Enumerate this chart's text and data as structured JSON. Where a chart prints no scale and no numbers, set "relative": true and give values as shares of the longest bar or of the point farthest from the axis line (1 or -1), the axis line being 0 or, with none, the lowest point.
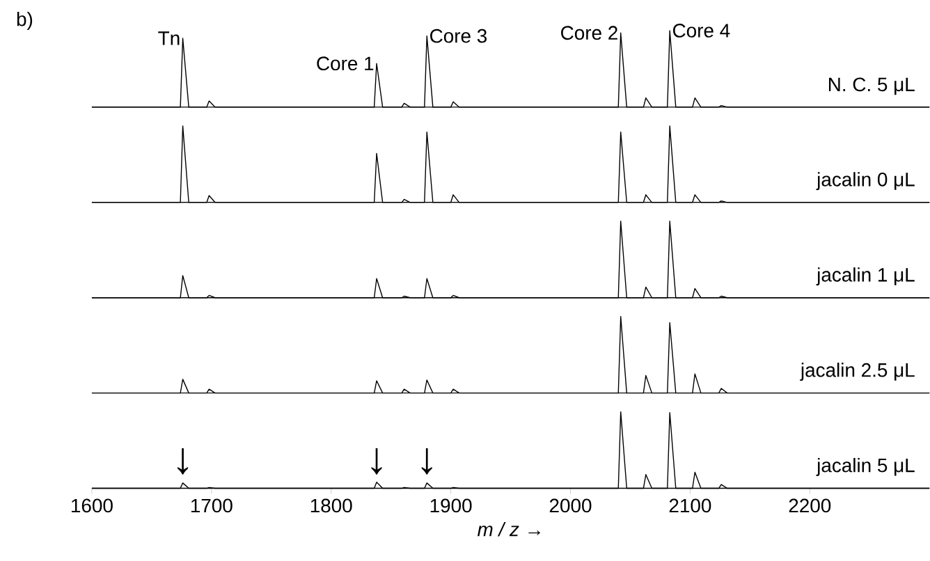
{
  "chart_data": [
    {
      "type": "line",
      "relative": true,
      "xlim": [
        1600,
        2300
      ],
      "tick_labels": false,
      "x": [
        1600,
        1674,
        1676,
        1681,
        1696,
        1698,
        1703,
        1836,
        1838,
        1843,
        1859,
        1861,
        1866,
        1878,
        1880,
        1885,
        1900,
        1902,
        1907,
        2040,
        2042,
        2047,
        2061,
        2063,
        2068,
        2081,
        2083,
        2088,
        2102,
        2104,
        2109,
        2124,
        2126,
        2131,
        2300
      ],
      "series": [
        {
          "name": "N. C. 5 μL",
          "color": "#000000",
          "values": [
            0,
            0,
            0.9,
            0,
            0,
            0.08,
            0,
            0,
            0.57,
            0,
            0,
            0.05,
            0,
            0,
            0.93,
            0,
            0,
            0.07,
            0,
            0,
            0.97,
            0,
            0,
            0.12,
            0,
            0,
            1,
            0,
            0,
            0.12,
            0,
            0,
            0.02,
            0,
            0
          ]
        }
      ],
      "annotations": [
        "b)",
        {
          "text": "Tn",
          "x": 1676,
          "y": 0.9
        },
        {
          "text": "Core 1",
          "x": 1838,
          "y": 0.57
        },
        {
          "text": "Core 3",
          "x": 1880,
          "y": 0.93
        },
        {
          "text": "Core 2",
          "x": 2042,
          "y": 0.97
        },
        {
          "text": "Core 4",
          "x": 2083,
          "y": 1
        }
      ]
    },
    {
      "type": "line",
      "relative": true,
      "xlim": [
        1600,
        2300
      ],
      "tick_labels": false,
      "x": [
        1600,
        1674,
        1676,
        1681,
        1696,
        1698,
        1703,
        1836,
        1838,
        1843,
        1859,
        1861,
        1866,
        1878,
        1880,
        1885,
        1900,
        1902,
        1907,
        2040,
        2042,
        2047,
        2061,
        2063,
        2068,
        2081,
        2083,
        2088,
        2102,
        2104,
        2109,
        2124,
        2126,
        2131,
        2300
      ],
      "series": [
        {
          "name": "jacalin 0 μL",
          "color": "#000000",
          "values": [
            0,
            0,
            1,
            0,
            0,
            0.09,
            0,
            0,
            0.64,
            0,
            0,
            0.04,
            0,
            0,
            0.92,
            0,
            0,
            0.1,
            0,
            0,
            0.92,
            0,
            0,
            0.1,
            0,
            0,
            1,
            0,
            0,
            0.1,
            0,
            0,
            0.02,
            0,
            0
          ]
        }
      ]
    },
    {
      "type": "line",
      "relative": true,
      "xlim": [
        1600,
        2300
      ],
      "tick_labels": false,
      "x": [
        1600,
        1674,
        1676,
        1681,
        1696,
        1698,
        1703,
        1836,
        1838,
        1843,
        1859,
        1861,
        1866,
        1878,
        1880,
        1885,
        1900,
        1902,
        1907,
        2040,
        2042,
        2047,
        2061,
        2063,
        2068,
        2081,
        2083,
        2088,
        2102,
        2104,
        2109,
        2124,
        2126,
        2131,
        2300
      ],
      "series": [
        {
          "name": "jacalin 1 μL",
          "color": "#000000",
          "values": [
            0,
            0,
            0.29,
            0,
            0,
            0.03,
            0,
            0,
            0.25,
            0,
            0,
            0.02,
            0,
            0,
            0.25,
            0,
            0,
            0.03,
            0,
            0,
            1,
            0,
            0,
            0.14,
            0,
            0,
            1,
            0,
            0,
            0.12,
            0,
            0,
            0.02,
            0,
            0
          ]
        }
      ]
    },
    {
      "type": "line",
      "relative": true,
      "xlim": [
        1600,
        2300
      ],
      "tick_labels": false,
      "x": [
        1600,
        1674,
        1676,
        1681,
        1696,
        1698,
        1703,
        1836,
        1838,
        1843,
        1859,
        1861,
        1866,
        1878,
        1880,
        1885,
        1900,
        1902,
        1907,
        2040,
        2042,
        2047,
        2061,
        2063,
        2068,
        2081,
        2083,
        2088,
        2102,
        2104,
        2109,
        2124,
        2126,
        2131,
        2300
      ],
      "series": [
        {
          "name": "jacalin 2.5 μL",
          "color": "#000000",
          "values": [
            0,
            0,
            0.18,
            0,
            0,
            0.05,
            0,
            0,
            0.16,
            0,
            0,
            0.05,
            0,
            0,
            0.17,
            0,
            0,
            0.05,
            0,
            0,
            1,
            0,
            0,
            0.23,
            0,
            0,
            0.92,
            0,
            0,
            0.25,
            0,
            0,
            0.06,
            0,
            0
          ]
        }
      ]
    },
    {
      "type": "line",
      "relative": true,
      "xlim": [
        1600,
        2300
      ],
      "xticks": [
        1600,
        1700,
        1800,
        1900,
        2000,
        2100,
        2200
      ],
      "tick_labels": "x",
      "xlabel": "*m / z* →",
      "x": [
        1600,
        1674,
        1676,
        1681,
        1696,
        1698,
        1703,
        1836,
        1838,
        1843,
        1859,
        1861,
        1866,
        1878,
        1880,
        1885,
        1900,
        1902,
        1907,
        2040,
        2042,
        2047,
        2061,
        2063,
        2068,
        2081,
        2083,
        2088,
        2102,
        2104,
        2109,
        2124,
        2126,
        2131,
        2300
      ],
      "series": [
        {
          "name": "jacalin 5 μL",
          "color": "#000000",
          "values": [
            0,
            0,
            0.07,
            0,
            0,
            0.01,
            0,
            0,
            0.08,
            0,
            0,
            0.01,
            0,
            0,
            0.07,
            0,
            0,
            0.01,
            0,
            0,
            1,
            0,
            0,
            0.18,
            0,
            0,
            0.99,
            0,
            0,
            0.21,
            0,
            0,
            0.05,
            0,
            0
          ]
        }
      ],
      "annotations": [
        {
          "text": "↓",
          "x": 1676,
          "y": 0.15
        },
        {
          "text": "↓",
          "x": 1838,
          "y": 0.15
        },
        {
          "text": "↓",
          "x": 1880,
          "y": 0.15
        }
      ]
    }
  ]
}
